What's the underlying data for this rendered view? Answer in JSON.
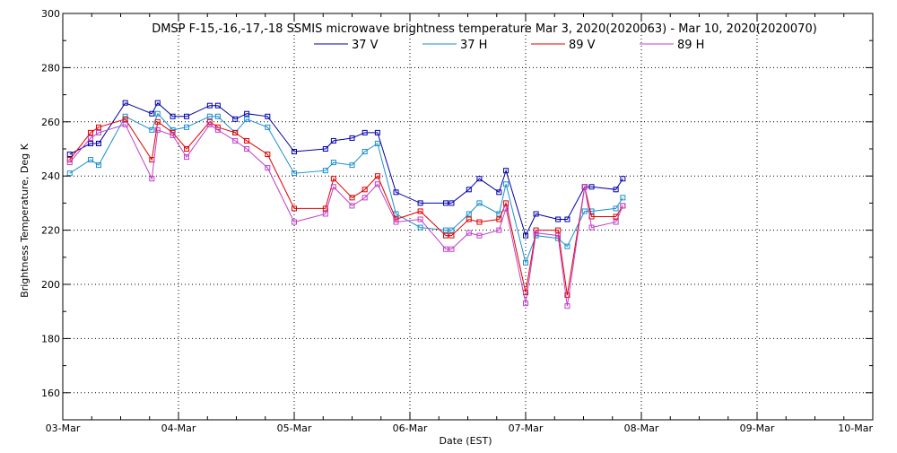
{
  "chart_data": {
    "type": "line",
    "title": "DMSP F-15,-16,-17,-18 SSMIS microwave brightness temperature Mar  3, 2020(2020063) - Mar 10, 2020(2020070)",
    "xlabel": "Date (EST)",
    "ylabel": "Brightness Temperature, Deg K",
    "xlim": [
      0,
      7
    ],
    "ylim": [
      150,
      300
    ],
    "x_ticks": [
      {
        "value": 0,
        "label": "03-Mar"
      },
      {
        "value": 1,
        "label": "04-Mar"
      },
      {
        "value": 2,
        "label": "05-Mar"
      },
      {
        "value": 3,
        "label": "06-Mar"
      },
      {
        "value": 4,
        "label": "07-Mar"
      },
      {
        "value": 5,
        "label": "08-Mar"
      },
      {
        "value": 6,
        "label": "09-Mar"
      },
      {
        "value": 7,
        "label": "10-Mar"
      }
    ],
    "y_ticks": [
      160,
      180,
      200,
      220,
      240,
      260,
      280,
      300
    ],
    "y_tick_labels": [
      "160",
      "180",
      "200",
      "220",
      "240",
      "260",
      "280",
      "300"
    ],
    "grid": true,
    "legend_position": "top-center",
    "x": [
      0.06,
      0.24,
      0.31,
      0.54,
      0.77,
      0.82,
      0.95,
      1.07,
      1.27,
      1.34,
      1.49,
      1.59,
      1.77,
      2.0,
      2.27,
      2.34,
      2.5,
      2.61,
      2.72,
      2.88,
      3.09,
      3.31,
      3.36,
      3.51,
      3.6,
      3.77,
      3.83,
      4.0,
      4.09,
      4.28,
      4.36,
      4.51,
      4.57,
      4.78,
      4.84
    ],
    "series": [
      {
        "name": "37 V",
        "color": "#0000AA",
        "values": [
          248,
          252,
          252,
          267,
          263,
          267,
          262,
          262,
          266,
          266,
          261,
          263,
          262,
          249,
          250,
          253,
          254,
          256,
          256,
          234,
          230,
          230,
          230,
          235,
          239,
          234,
          242,
          218,
          226,
          224,
          224,
          236,
          236,
          235,
          239
        ]
      },
      {
        "name": "37 H",
        "color": "#1A8FCF",
        "values": [
          241,
          246,
          244,
          262,
          257,
          263,
          257,
          258,
          262,
          262,
          256,
          261,
          258,
          241,
          242,
          245,
          244,
          249,
          252,
          226,
          221,
          220,
          220,
          226,
          230,
          226,
          237,
          208,
          218,
          217,
          214,
          227,
          227,
          228,
          232
        ]
      },
      {
        "name": "89 V",
        "color": "#E00000",
        "values": [
          246,
          256,
          258,
          261,
          246,
          260,
          256,
          250,
          260,
          258,
          256,
          253,
          248,
          228,
          228,
          239,
          232,
          235,
          240,
          224,
          227,
          218,
          218,
          224,
          223,
          224,
          230,
          197,
          220,
          220,
          196,
          236,
          225,
          225,
          229
        ]
      },
      {
        "name": "89 H",
        "color": "#C040C8",
        "values": [
          245,
          254,
          256,
          259,
          239,
          257,
          255,
          247,
          259,
          257,
          253,
          250,
          243,
          223,
          226,
          236,
          229,
          232,
          237,
          223,
          224,
          213,
          213,
          219,
          218,
          220,
          228,
          193,
          219,
          218,
          192,
          236,
          221,
          223,
          229
        ]
      }
    ]
  }
}
